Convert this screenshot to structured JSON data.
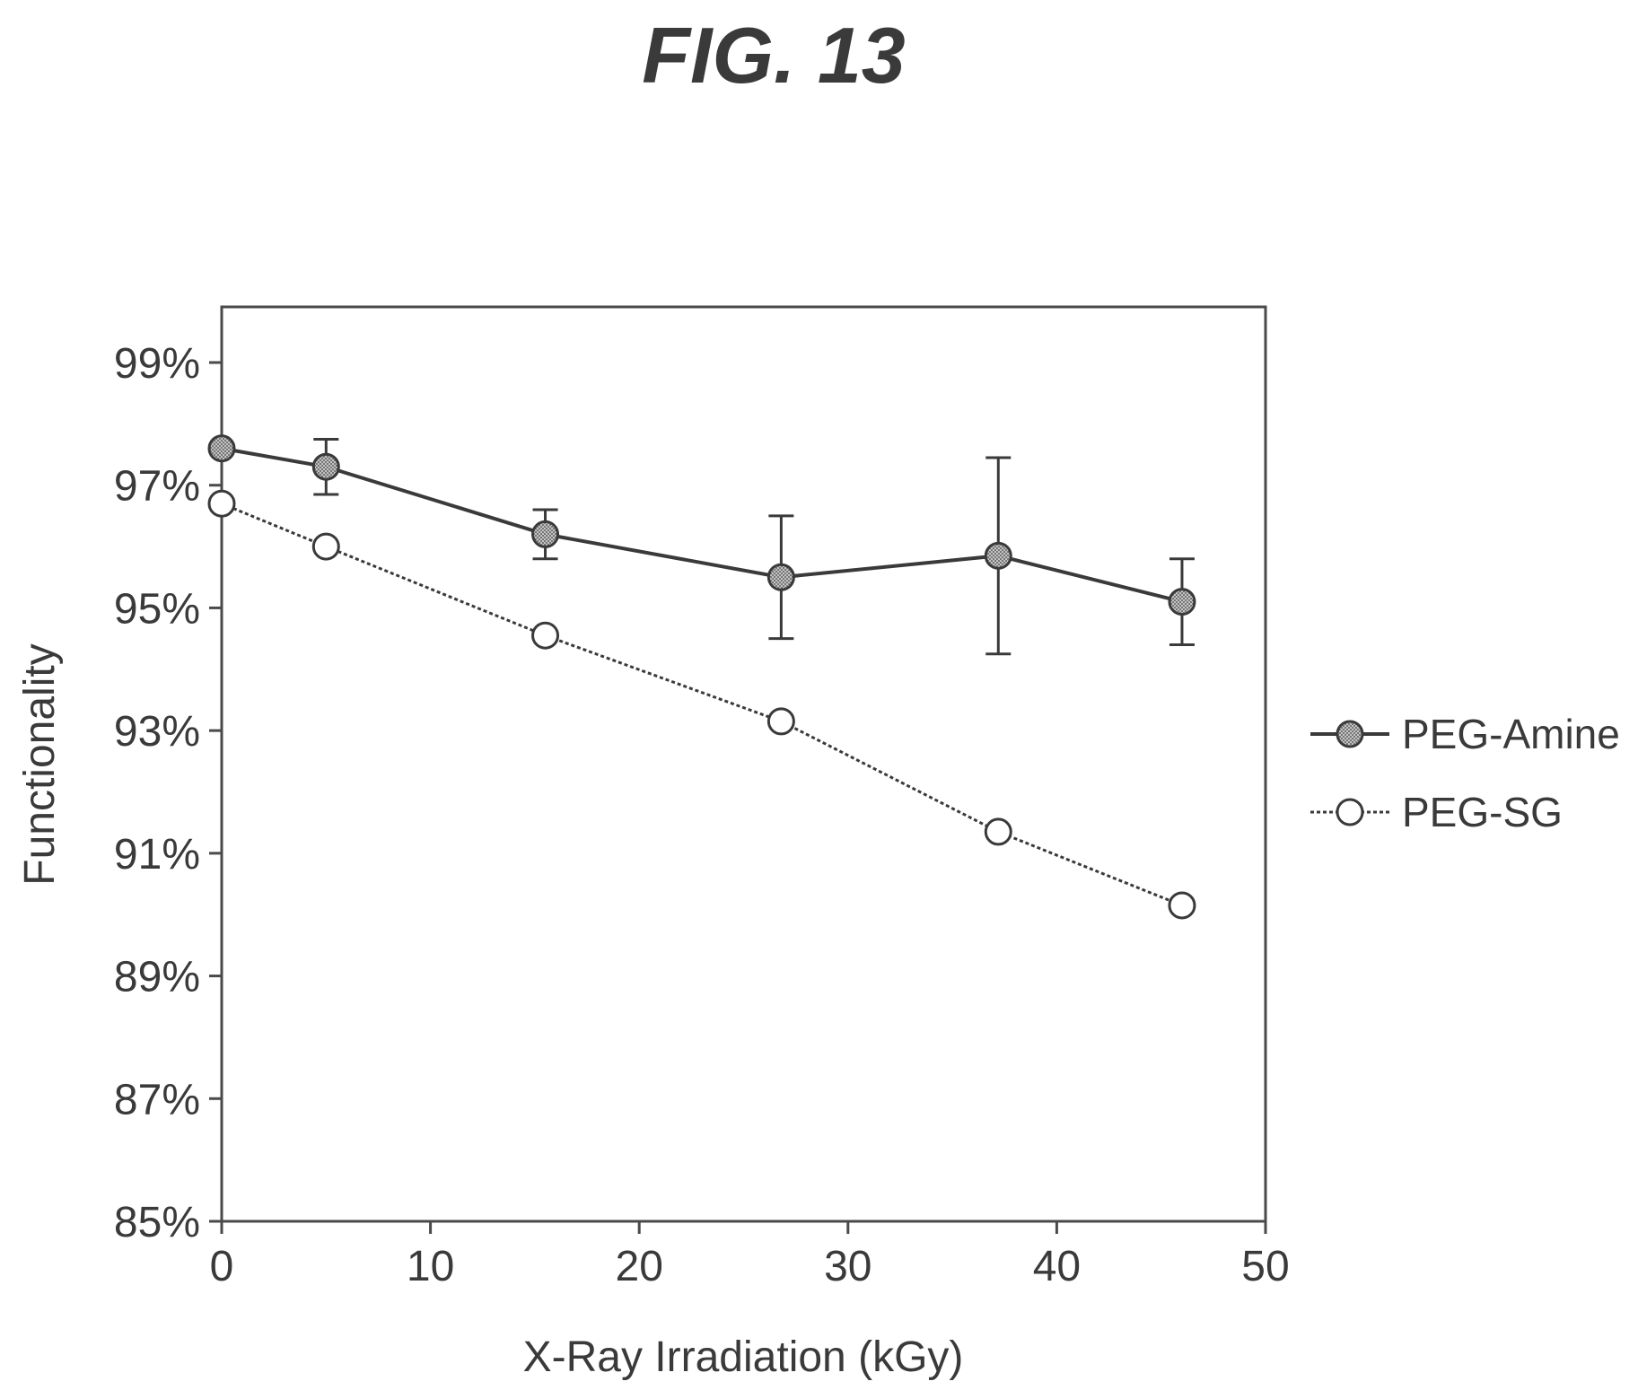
{
  "figure_label": "FIG. 13",
  "chart_data": {
    "type": "line",
    "title": "",
    "xlabel": "X-Ray Irradiation (kGy)",
    "ylabel": "Functionality",
    "xlim": [
      0,
      50
    ],
    "ylim": [
      85,
      100
    ],
    "x_ticks": [
      0,
      10,
      20,
      30,
      40,
      50
    ],
    "x_tick_labels": [
      "0",
      "10",
      "20",
      "30",
      "40",
      "50"
    ],
    "y_ticks": [
      85,
      87,
      89,
      91,
      93,
      95,
      97,
      99
    ],
    "y_tick_labels": [
      "85%",
      "87%",
      "89%",
      "91%",
      "93%",
      "95%",
      "97%",
      "99%"
    ],
    "grid": false,
    "legend_position": "right",
    "series": [
      {
        "name": "PEG-Amine",
        "marker": "filled-circle",
        "line_style": "solid",
        "color": "#3a3a3a",
        "x": [
          0,
          5,
          15.5,
          26.8,
          37.2,
          46
        ],
        "y": [
          97.6,
          97.3,
          96.2,
          95.5,
          95.85,
          95.1
        ],
        "error": [
          0,
          0.45,
          0.4,
          1.0,
          1.6,
          0.7
        ]
      },
      {
        "name": "PEG-SG",
        "marker": "open-circle",
        "line_style": "dotted",
        "color": "#3a3a3a",
        "x": [
          0,
          5,
          15.5,
          26.8,
          37.2,
          46
        ],
        "y": [
          96.7,
          96.0,
          94.55,
          93.15,
          91.35,
          90.15
        ],
        "error": [
          0,
          0,
          0,
          0,
          0,
          0
        ]
      }
    ]
  }
}
